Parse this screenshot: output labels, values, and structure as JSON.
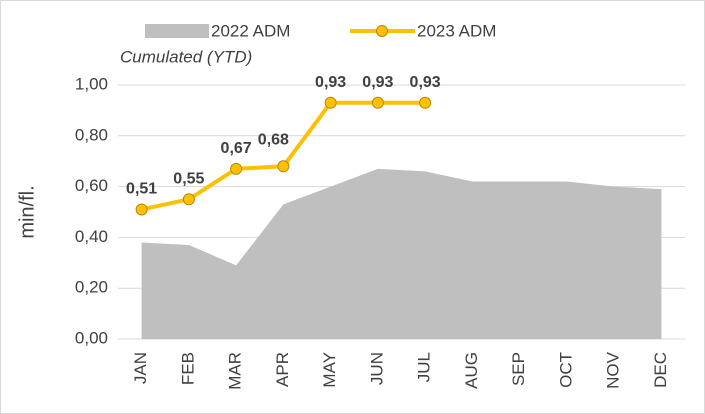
{
  "chart_data": {
    "type": "line",
    "annotation": "Cumulated (YTD)",
    "y_label": "min/fl.",
    "categories": [
      "JAN",
      "FEB",
      "MAR",
      "APR",
      "MAY",
      "JUN",
      "JUL",
      "AUG",
      "SEP",
      "OCT",
      "NOV",
      "DEC"
    ],
    "series": [
      {
        "name": "2022 ADM",
        "type": "area",
        "color": "#bfbfbf",
        "values": [
          0.38,
          0.37,
          0.29,
          0.53,
          0.6,
          0.67,
          0.66,
          0.62,
          0.62,
          0.62,
          0.6,
          0.59
        ]
      },
      {
        "name": "2023 ADM",
        "type": "line",
        "color": "#ffc000",
        "label_color": "#c9a227",
        "values": [
          0.51,
          0.55,
          0.67,
          0.68,
          0.93,
          0.93,
          0.93,
          null,
          null,
          null,
          null,
          null
        ],
        "value_labels": [
          "0,51",
          "0,55",
          "0,67",
          "0,68",
          "0,93",
          "0,93",
          "0,93",
          null,
          null,
          null,
          null,
          null
        ]
      }
    ],
    "ylim": [
      0,
      1
    ],
    "yticks": [
      {
        "value": 0,
        "label": "0,00"
      },
      {
        "value": 0.2,
        "label": "0,20"
      },
      {
        "value": 0.4,
        "label": "0,40"
      },
      {
        "value": 0.6,
        "label": "0,60"
      },
      {
        "value": 0.8,
        "label": "0,80"
      },
      {
        "value": 1,
        "label": "1,00"
      }
    ],
    "grid": true
  }
}
